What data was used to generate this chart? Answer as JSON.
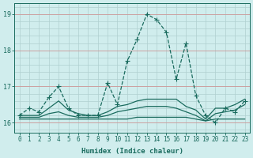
{
  "xlabel": "Humidex (Indice chaleur)",
  "x": [
    0,
    1,
    2,
    3,
    4,
    5,
    6,
    7,
    8,
    9,
    10,
    11,
    12,
    13,
    14,
    15,
    16,
    17,
    18,
    19,
    20,
    21,
    22,
    23
  ],
  "series": [
    {
      "values": [
        16.2,
        16.4,
        16.3,
        16.7,
        17.0,
        16.4,
        16.2,
        16.2,
        16.2,
        17.1,
        16.5,
        17.7,
        18.3,
        19.0,
        18.85,
        18.5,
        17.2,
        18.2,
        16.75,
        16.2,
        16.0,
        16.4,
        16.3,
        16.6
      ],
      "linestyle": "--",
      "marker": "+",
      "markersize": 4,
      "linewidth": 0.9
    },
    {
      "values": [
        16.2,
        16.2,
        16.2,
        16.4,
        16.6,
        16.35,
        16.25,
        16.2,
        16.2,
        16.3,
        16.45,
        16.5,
        16.6,
        16.65,
        16.65,
        16.65,
        16.65,
        16.45,
        16.35,
        16.1,
        16.4,
        16.4,
        16.5,
        16.65
      ],
      "linestyle": "-",
      "marker": null,
      "markersize": 0,
      "linewidth": 0.9
    },
    {
      "values": [
        16.15,
        16.15,
        16.15,
        16.25,
        16.3,
        16.2,
        16.15,
        16.15,
        16.15,
        16.2,
        16.3,
        16.35,
        16.4,
        16.45,
        16.45,
        16.45,
        16.4,
        16.3,
        16.2,
        16.05,
        16.25,
        16.3,
        16.35,
        16.5
      ],
      "linestyle": "-",
      "marker": null,
      "markersize": 0,
      "linewidth": 0.9
    },
    {
      "values": [
        16.1,
        16.1,
        16.1,
        16.1,
        16.1,
        16.1,
        16.1,
        16.1,
        16.1,
        16.1,
        16.1,
        16.1,
        16.15,
        16.15,
        16.15,
        16.15,
        16.15,
        16.15,
        16.1,
        16.05,
        16.1,
        16.1,
        16.1,
        16.1
      ],
      "linestyle": "-",
      "marker": null,
      "markersize": 0,
      "linewidth": 0.9
    }
  ],
  "line_color": "#1a6b5e",
  "bg_color": "#d0eded",
  "grid_color": "#b0d0d0",
  "grid_color_major": "#c8a0a0",
  "ylim": [
    15.72,
    19.3
  ],
  "yticks": [
    16,
    17,
    18,
    19
  ],
  "xticks": [
    0,
    1,
    2,
    3,
    4,
    5,
    6,
    7,
    8,
    9,
    10,
    11,
    12,
    13,
    14,
    15,
    16,
    17,
    18,
    19,
    20,
    21,
    22,
    23
  ],
  "tick_fontsize": 5.5,
  "xlabel_fontsize": 6.5
}
